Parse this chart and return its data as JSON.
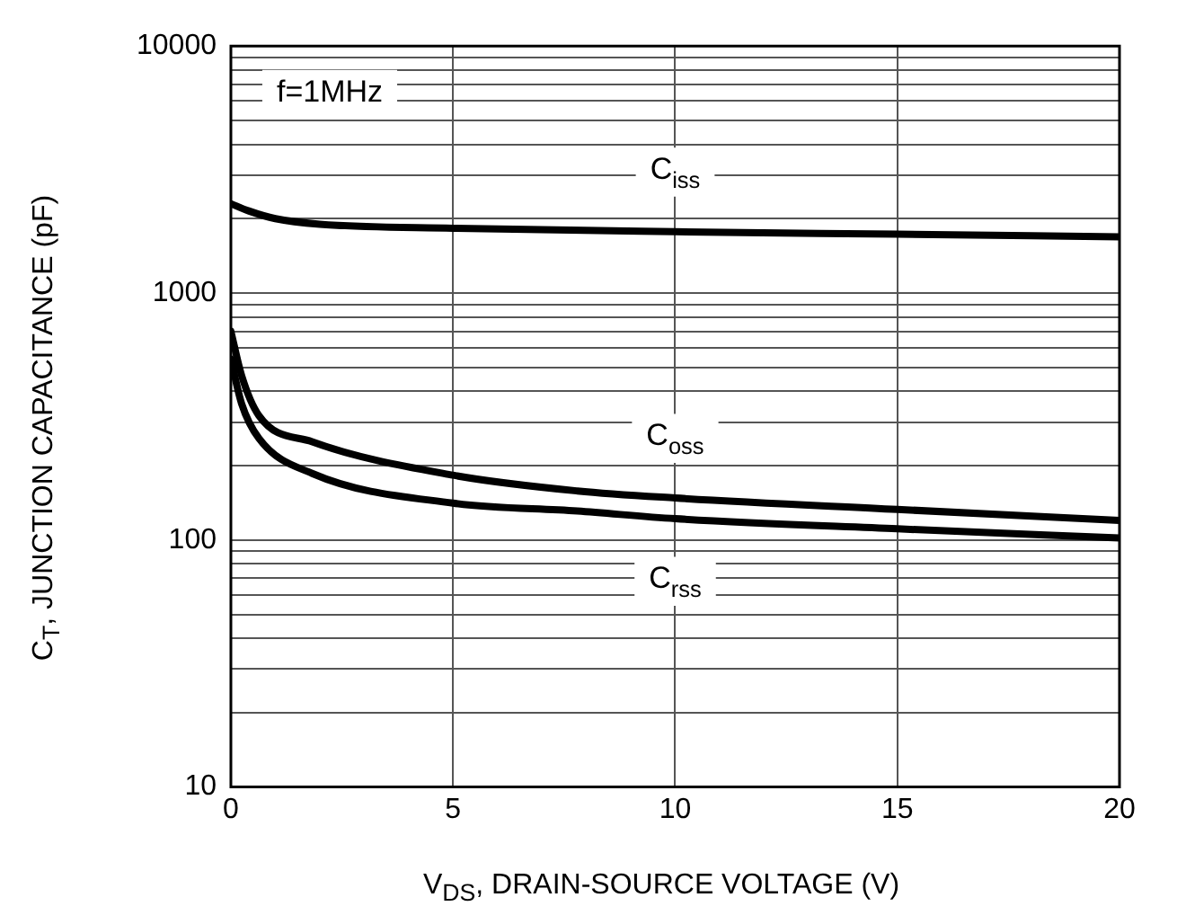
{
  "chart_data": {
    "type": "line",
    "xlabel": "V$_{DS}$, DRAIN-SOURCE VOLTAGE (V)",
    "ylabel": "C$_{T}$, JUNCTION CAPACITANCE (pF)",
    "log": "y",
    "grid": true,
    "marker": "none",
    "line_style": "solid",
    "legend": false,
    "xlim": [
      0,
      20
    ],
    "xticks": [
      0,
      5,
      10,
      15,
      20
    ],
    "ylim": [
      10,
      10000
    ],
    "yticks": [
      10,
      {
        "value": 20,
        "label": null
      },
      {
        "value": 30,
        "label": null
      },
      {
        "value": 40,
        "label": null
      },
      {
        "value": 50,
        "label": null
      },
      {
        "value": 60,
        "label": null
      },
      {
        "value": 70,
        "label": null
      },
      {
        "value": 80,
        "label": null
      },
      {
        "value": 90,
        "label": null
      },
      100,
      {
        "value": 200,
        "label": null
      },
      {
        "value": 300,
        "label": null
      },
      {
        "value": 400,
        "label": null
      },
      {
        "value": 500,
        "label": null
      },
      {
        "value": 600,
        "label": null
      },
      {
        "value": 700,
        "label": null
      },
      {
        "value": 800,
        "label": null
      },
      {
        "value": 900,
        "label": null
      },
      1000,
      {
        "value": 2000,
        "label": null
      },
      {
        "value": 3000,
        "label": null
      },
      {
        "value": 4000,
        "label": null
      },
      {
        "value": 5000,
        "label": null
      },
      {
        "value": 6000,
        "label": null
      },
      {
        "value": 7000,
        "label": null
      },
      {
        "value": 8000,
        "label": null
      },
      {
        "value": 9000,
        "label": null
      },
      10000
    ],
    "series": [
      {
        "name": "C$_{iss}$",
        "color": "#000000",
        "x": [
          0,
          0.4,
          1,
          2,
          5,
          10,
          15,
          20
        ],
        "values": [
          2300,
          2150,
          2000,
          1900,
          1830,
          1770,
          1730,
          1690
        ]
      },
      {
        "name": "C$_{oss}$",
        "color": "#000000",
        "x": [
          0,
          0.24,
          0.63,
          1.83,
          5,
          7.8,
          10,
          15,
          20
        ],
        "values": [
          700,
          464,
          319,
          250,
          183,
          158,
          148,
          133,
          120
        ]
      },
      {
        "name": "C$_{rss}$",
        "color": "#000000",
        "x": [
          0,
          0.24,
          0.63,
          1.83,
          5,
          7.8,
          10,
          15,
          20
        ],
        "values": [
          540,
          357,
          258,
          186,
          141,
          131,
          122,
          111,
          102
        ]
      }
    ],
    "annotations": [
      "f=1MHz"
    ]
  }
}
